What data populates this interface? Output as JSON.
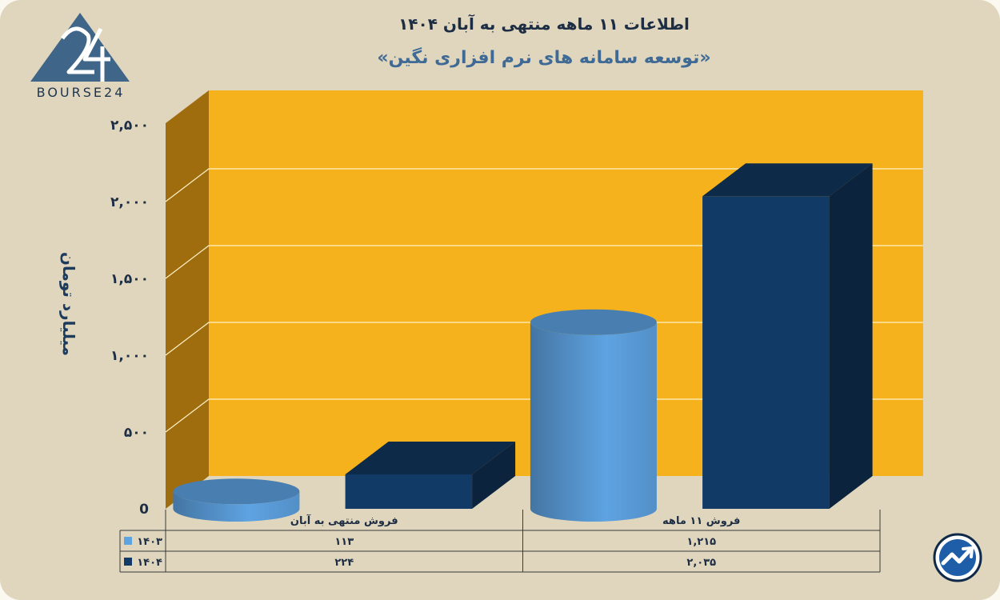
{
  "header": {
    "title_line1": "اطلاعات ۱۱ ماهه منتهی به آبان ۱۴۰۴",
    "title_line2": "«توسعه سامانه های نرم افزاری نگین»"
  },
  "logo": {
    "text": "BOURSE24",
    "icon": "bourse24-logo-icon"
  },
  "badge": {
    "icon": "trend-up-arrow-icon"
  },
  "colors": {
    "background": "#e0d6bd",
    "plot_back": "#f5b21c",
    "side_wall": "#a06d0e",
    "series_1403": "#5ea3e2",
    "series_1404": "#123a66"
  },
  "chart_data": {
    "type": "bar",
    "ylabel": "میلیارد تومان",
    "ylim": [
      0,
      2500
    ],
    "yticks": [
      0,
      500,
      1000,
      1500,
      2000,
      2500
    ],
    "ytick_labels": [
      "0",
      "۵۰۰",
      "۱,۰۰۰",
      "۱,۵۰۰",
      "۲,۰۰۰",
      "۲,۵۰۰"
    ],
    "grid": true,
    "categories": [
      "فروش منتهی به  آبان",
      "فروش ۱۱ ماهه"
    ],
    "series": [
      {
        "name": "۱۴۰۳",
        "shape": "cylinder",
        "values": [
          113,
          1215
        ],
        "labels": [
          "۱۱۳",
          "۱,۲۱۵"
        ]
      },
      {
        "name": "۱۴۰۴",
        "shape": "box",
        "values": [
          224,
          2035
        ],
        "labels": [
          "۲۲۴",
          "۲,۰۳۵"
        ]
      }
    ],
    "legend_position": "data-table"
  }
}
